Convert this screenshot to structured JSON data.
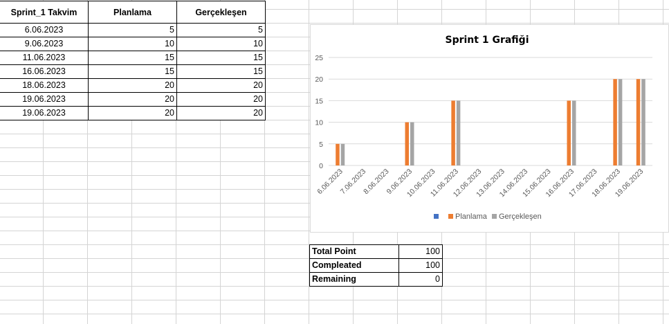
{
  "sheet": {
    "headers": [
      "Sprint_1 Takvim",
      "Planlama",
      "Gerçekleşen"
    ],
    "rows": [
      [
        "6.06.2023",
        "5",
        "5"
      ],
      [
        "9.06.2023",
        "10",
        "10"
      ],
      [
        "11.06.2023",
        "15",
        "15"
      ],
      [
        "16.06.2023",
        "15",
        "15"
      ],
      [
        "18.06.2023",
        "20",
        "20"
      ],
      [
        "19.06.2023",
        "20",
        "20"
      ],
      [
        "19.06.2023",
        "20",
        "20"
      ]
    ]
  },
  "summary": [
    {
      "label": "Total Point",
      "value": "100"
    },
    {
      "label": "Compleated",
      "value": "100"
    },
    {
      "label": "Remaining",
      "value": "0"
    }
  ],
  "colors": {
    "planlama": "#ED7D31",
    "gerceklesen": "#A5A5A5",
    "empty_series": "#4472C4",
    "gridline": "#d9d9d9"
  },
  "chart_data": {
    "type": "bar",
    "title": "Sprint 1 Grafiği",
    "categories": [
      "6.06.2023",
      "7.06.2023",
      "8.06.2023",
      "9.06.2023",
      "10.06.2023",
      "11.06.2023",
      "12.06.2023",
      "13.06.2023",
      "14.06.2023",
      "15.06.2023",
      "16.06.2023",
      "17.06.2023",
      "18.06.2023",
      "19.06.2023"
    ],
    "series": [
      {
        "name": "",
        "values": [
          null,
          null,
          null,
          null,
          null,
          null,
          null,
          null,
          null,
          null,
          null,
          null,
          null,
          null
        ]
      },
      {
        "name": "Planlama",
        "values": [
          5,
          null,
          null,
          10,
          null,
          15,
          null,
          null,
          null,
          null,
          15,
          null,
          20,
          20
        ]
      },
      {
        "name": "Gerçekleşen",
        "values": [
          5,
          null,
          null,
          10,
          null,
          15,
          null,
          null,
          null,
          null,
          15,
          null,
          20,
          20
        ]
      }
    ],
    "yticks": [
      0,
      5,
      10,
      15,
      20,
      25
    ],
    "ylim": [
      0,
      25
    ],
    "grid": true,
    "legend": "bottom"
  }
}
